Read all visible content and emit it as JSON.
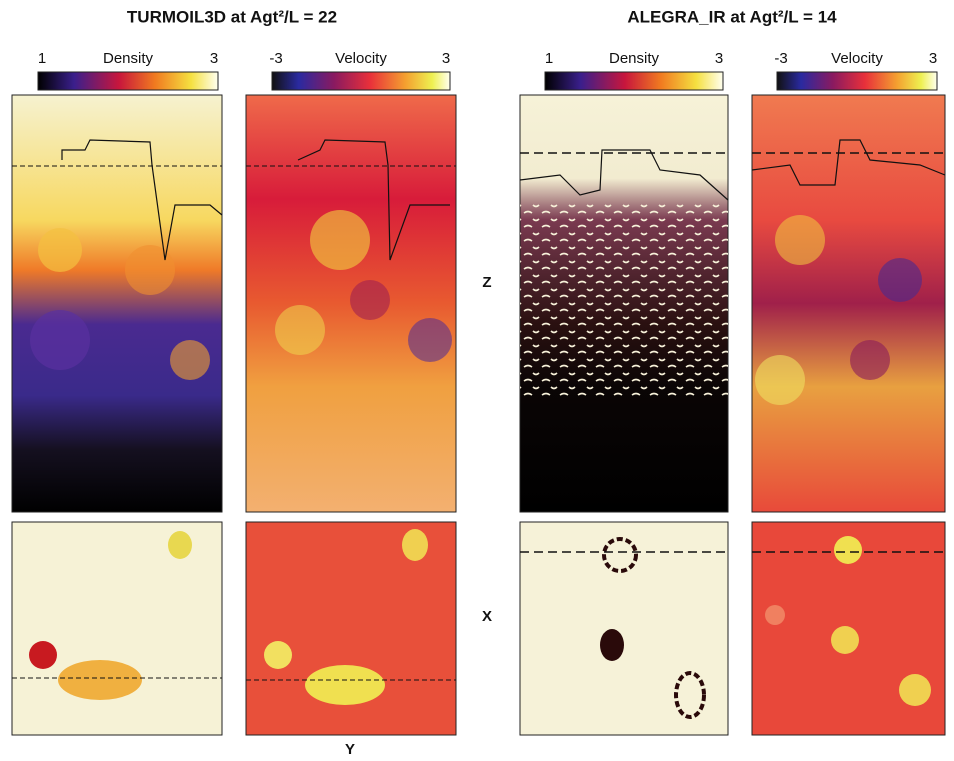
{
  "groups": [
    {
      "title": "TURMOIL3D at Agt²/L = 22",
      "colorbars": [
        {
          "min": 1,
          "label": "Density",
          "max": 3
        },
        {
          "min": -3,
          "label": "Velocity",
          "max": 3
        }
      ]
    },
    {
      "title": "ALEGRA_IR at Agt²/L = 14",
      "colorbars": [
        {
          "min": 1,
          "label": "Density",
          "max": 3
        },
        {
          "min": -3,
          "label": "Velocity",
          "max": 3
        }
      ]
    }
  ],
  "axis_labels": {
    "z": "Z",
    "x": "X",
    "y": "Y"
  }
}
